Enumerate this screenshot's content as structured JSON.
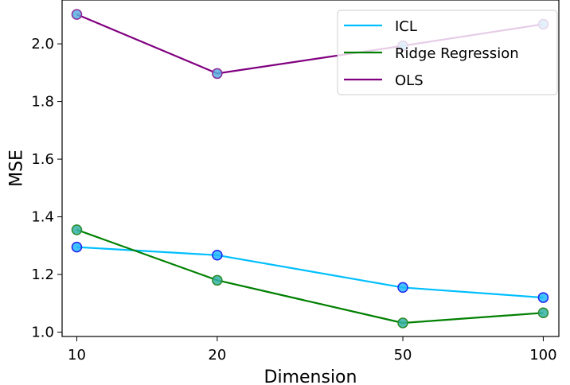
{
  "chart_data": {
    "type": "line",
    "title": "",
    "xlabel": "Dimension",
    "ylabel": "MSE",
    "x_scale": "log",
    "x": [
      10,
      20,
      50,
      100
    ],
    "x_tick_labels": [
      "10",
      "20",
      "50",
      "100"
    ],
    "xlim": [
      9.3,
      108
    ],
    "ylim": [
      0.985,
      2.152
    ],
    "y_ticks": [
      1.0,
      1.2,
      1.4,
      1.6,
      1.8,
      2.0
    ],
    "y_tick_labels": [
      "1.0",
      "1.2",
      "1.4",
      "1.6",
      "1.8",
      "2.0"
    ],
    "grid": false,
    "legend_position": "top-right",
    "series": [
      {
        "name": "ICL",
        "values": [
          1.295,
          1.267,
          1.155,
          1.12
        ],
        "color": "#00bfff",
        "marker_fill": "#22b8ff",
        "marker_edge": "#2222ee"
      },
      {
        "name": "Ridge Regression",
        "values": [
          1.355,
          1.18,
          1.032,
          1.067
        ],
        "color": "#008000",
        "marker_fill": "#33b2a3",
        "marker_edge": "#2a8a2a"
      },
      {
        "name": "OLS",
        "values": [
          2.102,
          1.897,
          1.993,
          2.068
        ],
        "color": "#800080",
        "marker_fill": "#5aaedf",
        "marker_edge": "#8a2a9a"
      }
    ]
  }
}
